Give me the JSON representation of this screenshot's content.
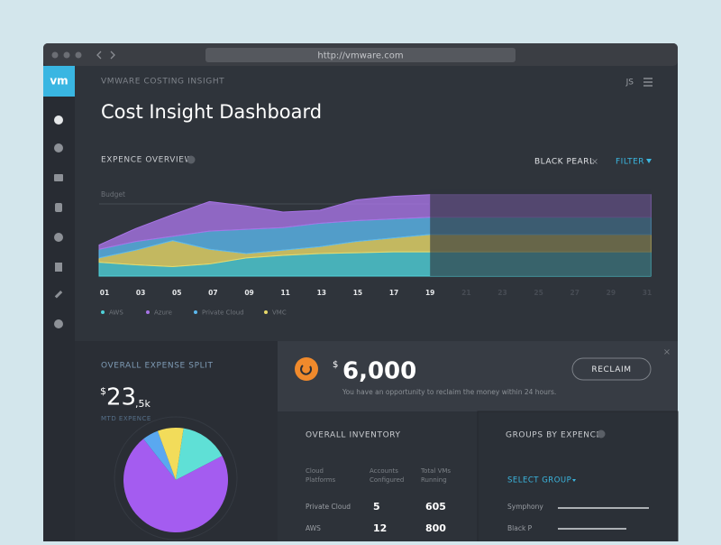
{
  "window": {
    "url": "http://vmware.com"
  },
  "header": {
    "logo": "vm",
    "app_name": "VMWARE COSTING INSIGHT",
    "user": "JS",
    "title": "Cost Insight Dashboard"
  },
  "expense_overview": {
    "title": "EXPENCE OVERVIEW",
    "filter_tag": "BLACK PEARL",
    "filter_close": "×",
    "filter_label": "FILTER",
    "chart": {
      "type": "area",
      "budget_label": "Budget",
      "categories": [
        "01",
        "03",
        "05",
        "07",
        "09",
        "11",
        "13",
        "15",
        "17",
        "19",
        "21",
        "23",
        "25",
        "27",
        "29",
        "31"
      ],
      "ylim": [
        0,
        100
      ],
      "series": [
        {
          "name": "AWS",
          "color": "#4fd1d9",
          "values": [
            16,
            13,
            11,
            14,
            21,
            24,
            26,
            27,
            28,
            28,
            28,
            28,
            28,
            28,
            28,
            28
          ]
        },
        {
          "name": "VMC",
          "color": "#e8d96a",
          "values": [
            5,
            17,
            30,
            17,
            5,
            6,
            8,
            13,
            16,
            20,
            20,
            20,
            20,
            20,
            20,
            20
          ]
        },
        {
          "name": "Private Cloud",
          "color": "#5bb8ee",
          "values": [
            10,
            10,
            5,
            21,
            28,
            26,
            27,
            24,
            22,
            20,
            20,
            20,
            20,
            20,
            20,
            20
          ]
        },
        {
          "name": "Azure",
          "color": "#a774e6",
          "values": [
            5,
            15,
            25,
            34,
            27,
            18,
            15,
            24,
            26,
            26,
            26,
            26,
            26,
            26,
            26,
            26
          ]
        }
      ],
      "legend_order": [
        "AWS",
        "Azure",
        "Private Cloud",
        "VMC"
      ]
    }
  },
  "expense_split": {
    "title": "OVERALL EXPENSE SPLIT",
    "currency": "$",
    "amount": "23",
    "amount_suffix": ",5k",
    "caption": "MTD EXPENCE",
    "pie": {
      "type": "pie",
      "values": [
        15,
        72,
        5,
        8
      ],
      "colors": [
        "#5fe0d6",
        "#a45cf0",
        "#5aa8f0",
        "#f2dc5a"
      ]
    }
  },
  "reclaim": {
    "currency": "$",
    "amount": "6,000",
    "message": "You have an opportunity to reclaim the money within 24 hours.",
    "button": "RECLAIM",
    "close": "×"
  },
  "inventory": {
    "title": "OVERALL INVENTORY",
    "columns": [
      [
        "Cloud",
        "Platforms"
      ],
      [
        "Accounts",
        "Configured"
      ],
      [
        "Total VMs",
        "Running"
      ]
    ],
    "rows": [
      [
        "Private Cloud",
        5,
        605
      ],
      [
        "AWS",
        12,
        800
      ]
    ]
  },
  "groups": {
    "title": "GROUPS BY EXPENCE",
    "select": "SELECT GROUP",
    "rows": [
      "Symphony",
      "Black P"
    ]
  }
}
